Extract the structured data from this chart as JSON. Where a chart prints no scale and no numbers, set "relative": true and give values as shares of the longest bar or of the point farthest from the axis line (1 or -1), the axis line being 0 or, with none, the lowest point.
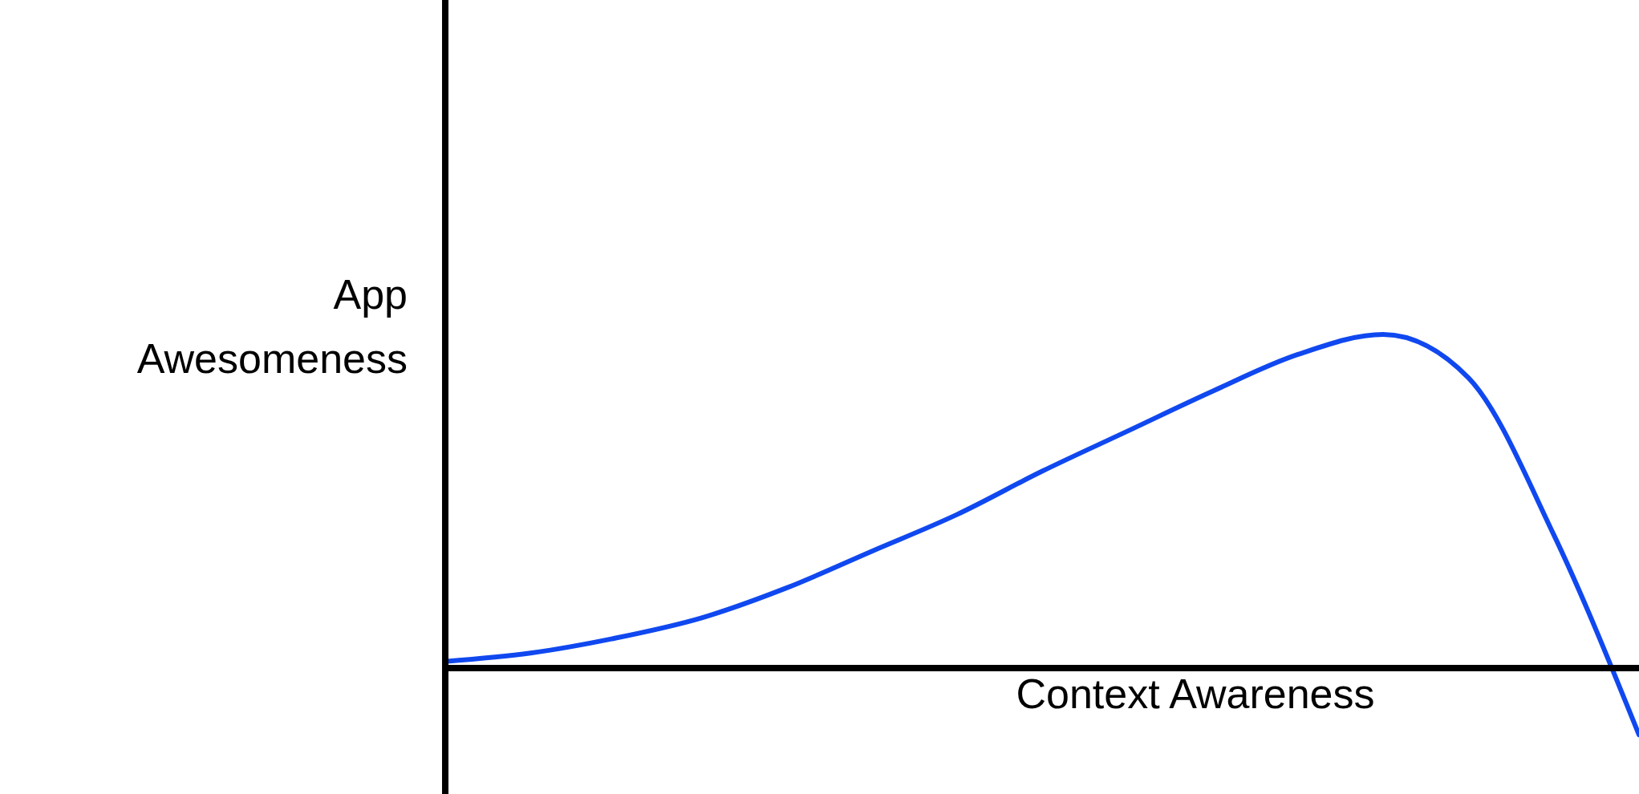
{
  "chart_data": {
    "type": "line",
    "relative": true,
    "xlabel": "Context Awareness",
    "ylabel": "App Awesomeness",
    "categories": [
      null,
      null,
      null,
      null,
      null,
      null,
      null,
      null,
      null,
      null,
      null,
      null,
      null,
      null,
      null
    ],
    "series": [
      {
        "color": "#1048f0",
        "values": [
          0.02,
          0.045,
          0.09,
          0.15,
          0.24,
          0.35,
          0.46,
          0.59,
          0.71,
          0.83,
          0.94,
          1.0,
          0.87,
          0.4,
          -0.2
        ]
      }
    ]
  }
}
